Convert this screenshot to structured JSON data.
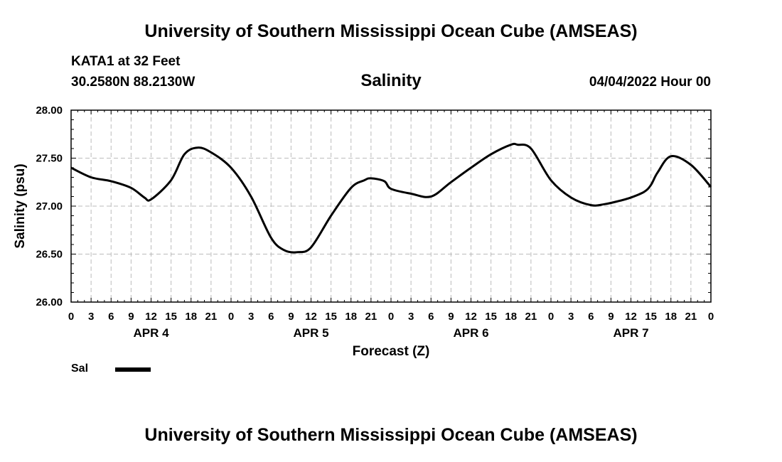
{
  "header": {
    "title": "University of Southern Mississippi Ocean Cube (AMSEAS)",
    "station": "KATA1 at 32 Feet",
    "coords": "30.2580N  88.2130W",
    "variable": "Salinity",
    "date": "04/04/2022 Hour 00"
  },
  "footer": {
    "title": "University of Southern Mississippi Ocean Cube (AMSEAS)"
  },
  "legend": {
    "label": "Sal"
  },
  "chart_data": {
    "type": "line",
    "title": "Salinity",
    "xlabel": "Forecast (Z)",
    "ylabel": "Salinity (psu)",
    "xlim": [
      0,
      96
    ],
    "ylim": [
      26.0,
      28.0
    ],
    "y_ticks": [
      "26.00",
      "26.50",
      "27.00",
      "27.50",
      "28.00"
    ],
    "x_tick_labels": [
      "0",
      "3",
      "6",
      "9",
      "12",
      "15",
      "18",
      "21",
      "0",
      "3",
      "6",
      "9",
      "12",
      "15",
      "18",
      "21",
      "0",
      "3",
      "6",
      "9",
      "12",
      "15",
      "18",
      "21",
      "0",
      "3",
      "6",
      "9",
      "12",
      "15",
      "18",
      "21",
      "0"
    ],
    "day_labels": [
      {
        "label": "APR 4",
        "hour": 12
      },
      {
        "label": "APR 5",
        "hour": 36
      },
      {
        "label": "APR 6",
        "hour": 60
      },
      {
        "label": "APR 7",
        "hour": 84
      }
    ],
    "grid": true,
    "series": [
      {
        "name": "Sal",
        "color": "#000000",
        "x": [
          0,
          3,
          6,
          9,
          11,
          12,
          15,
          17,
          19,
          21,
          24,
          27,
          30,
          32,
          34,
          36,
          39,
          42,
          44,
          45,
          47,
          48,
          51,
          54,
          57,
          60,
          63,
          66,
          67,
          69,
          72,
          75,
          78,
          80,
          82,
          84,
          86,
          87,
          88,
          90,
          93,
          96
        ],
        "y": [
          27.4,
          27.3,
          27.26,
          27.19,
          27.09,
          27.07,
          27.27,
          27.54,
          27.61,
          27.56,
          27.4,
          27.1,
          26.67,
          26.54,
          26.52,
          26.57,
          26.9,
          27.19,
          27.27,
          27.29,
          27.26,
          27.18,
          27.13,
          27.1,
          27.25,
          27.4,
          27.54,
          27.64,
          27.64,
          27.6,
          27.27,
          27.09,
          27.01,
          27.02,
          27.05,
          27.09,
          27.15,
          27.22,
          27.35,
          27.52,
          27.43,
          27.2
        ]
      }
    ]
  }
}
